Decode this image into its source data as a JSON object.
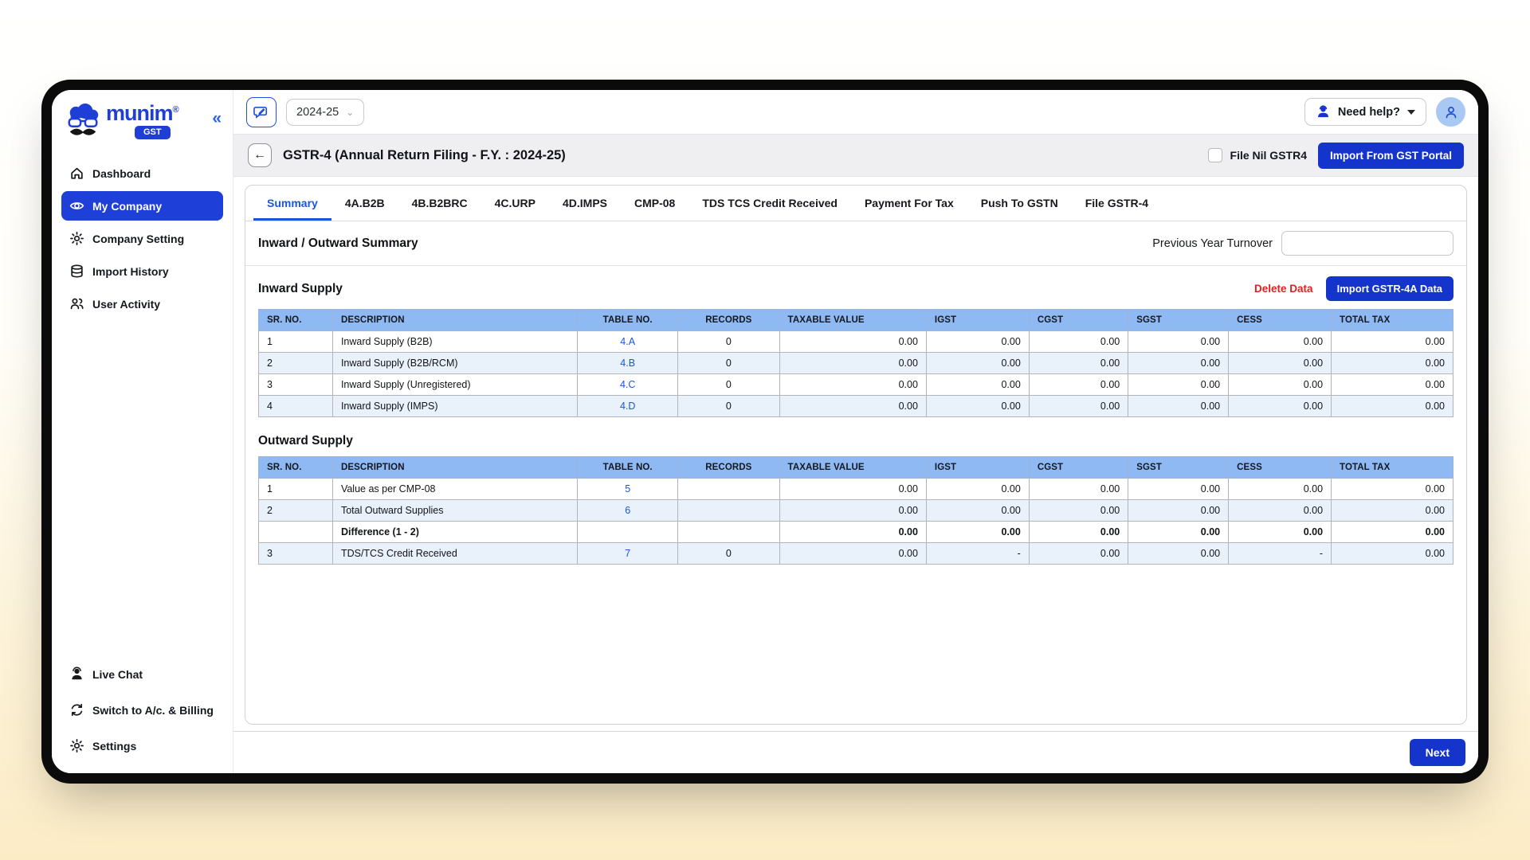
{
  "colors": {
    "primary": "#1434cb",
    "sidebar-active": "#1e3fd8",
    "link": "#1a56db",
    "danger": "#e02020",
    "thead-bg": "#8fb9f3",
    "row-alt": "#e9f1fb",
    "header-band": "#efeff1",
    "avatar-bg": "#a9c8f2"
  },
  "sidebar": {
    "brand": {
      "name": "munim",
      "reg": "®",
      "badge": "GST"
    },
    "collapse_icon": "«",
    "items": [
      {
        "label": "Dashboard",
        "icon": "home",
        "active": false
      },
      {
        "label": "My Company",
        "icon": "eye",
        "active": true
      },
      {
        "label": "Company Setting",
        "icon": "gear",
        "active": false
      },
      {
        "label": "Import History",
        "icon": "database",
        "active": false
      },
      {
        "label": "User Activity",
        "icon": "users",
        "active": false
      }
    ],
    "footer_items": [
      {
        "label": "Live Chat",
        "icon": "chat"
      },
      {
        "label": "Switch to A/c. & Billing",
        "icon": "sync"
      },
      {
        "label": "Settings",
        "icon": "gear"
      }
    ]
  },
  "topbar": {
    "fiscal_year": "2024-25",
    "need_help_label": "Need help?"
  },
  "header": {
    "back_icon": "←",
    "title": "GSTR-4 (Annual Return Filing - F.Y. : 2024-25)",
    "file_nil_label": "File Nil GSTR4",
    "import_button": "Import From GST Portal"
  },
  "tabs": {
    "active": "Summary",
    "items": [
      "Summary",
      "4A.B2B",
      "4B.B2BRC",
      "4C.URP",
      "4D.IMPS",
      "CMP-08",
      "TDS TCS Credit Received",
      "Payment For Tax",
      "Push To GSTN",
      "File GSTR-4"
    ]
  },
  "summary": {
    "section_title": "Inward / Outward Summary",
    "turnover_label": "Previous Year Turnover",
    "turnover_value": ""
  },
  "tables": {
    "columns": [
      "SR. NO.",
      "DESCRIPTION",
      "TABLE NO.",
      "RECORDS",
      "TAXABLE VALUE",
      "IGST",
      "CGST",
      "SGST",
      "CESS",
      "TOTAL TAX"
    ],
    "inward": {
      "title": "Inward Supply",
      "delete_button": "Delete Data",
      "import_button": "Import GSTR-4A Data",
      "rows": [
        {
          "sr": "1",
          "description": "Inward Supply (B2B)",
          "table_no": "4.A",
          "records": "0",
          "values": [
            "0.00",
            "0.00",
            "0.00",
            "0.00",
            "0.00",
            "0.00"
          ],
          "bold": false
        },
        {
          "sr": "2",
          "description": "Inward Supply (B2B/RCM)",
          "table_no": "4.B",
          "records": "0",
          "values": [
            "0.00",
            "0.00",
            "0.00",
            "0.00",
            "0.00",
            "0.00"
          ],
          "bold": false
        },
        {
          "sr": "3",
          "description": "Inward Supply (Unregistered)",
          "table_no": "4.C",
          "records": "0",
          "values": [
            "0.00",
            "0.00",
            "0.00",
            "0.00",
            "0.00",
            "0.00"
          ],
          "bold": false
        },
        {
          "sr": "4",
          "description": "Inward Supply (IMPS)",
          "table_no": "4.D",
          "records": "0",
          "values": [
            "0.00",
            "0.00",
            "0.00",
            "0.00",
            "0.00",
            "0.00"
          ],
          "bold": false
        }
      ]
    },
    "outward": {
      "title": "Outward Supply",
      "rows": [
        {
          "sr": "1",
          "description": "Value as per CMP-08",
          "table_no": "5",
          "records": "",
          "values": [
            "0.00",
            "0.00",
            "0.00",
            "0.00",
            "0.00",
            "0.00"
          ],
          "bold": false
        },
        {
          "sr": "2",
          "description": "Total Outward Supplies",
          "table_no": "6",
          "records": "",
          "values": [
            "0.00",
            "0.00",
            "0.00",
            "0.00",
            "0.00",
            "0.00"
          ],
          "bold": false
        },
        {
          "sr": "",
          "description": "Difference (1 - 2)",
          "table_no": "",
          "records": "",
          "values": [
            "0.00",
            "0.00",
            "0.00",
            "0.00",
            "0.00",
            "0.00"
          ],
          "bold": true
        },
        {
          "sr": "3",
          "description": "TDS/TCS Credit Received",
          "table_no": "7",
          "records": "0",
          "values": [
            "0.00",
            "-",
            "0.00",
            "0.00",
            "-",
            "0.00"
          ],
          "bold": false
        }
      ]
    }
  },
  "footer": {
    "next_button": "Next"
  }
}
